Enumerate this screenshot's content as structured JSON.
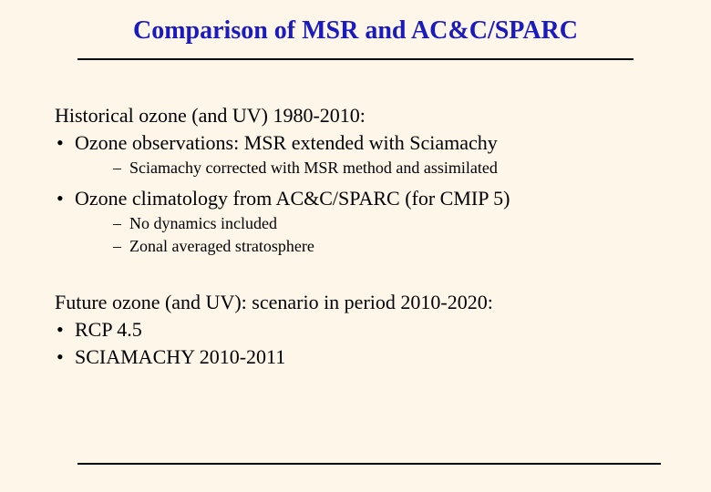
{
  "slide": {
    "title": "Comparison of MSR and AC&C/SPARC",
    "section1": {
      "intro": "Historical ozone (and UV) 1980-2010:",
      "bullets": [
        {
          "text": "Ozone observations: MSR extended with Sciamachy",
          "subs": [
            "Sciamachy corrected with MSR method and assimilated"
          ]
        },
        {
          "text": "Ozone climatology from AC&C/SPARC (for CMIP 5)",
          "subs": [
            "No dynamics included",
            "Zonal averaged stratosphere"
          ]
        }
      ]
    },
    "section2": {
      "intro": "Future ozone (and UV): scenario in period 2010-2020:",
      "bullets": [
        {
          "text": "RCP 4.5",
          "subs": []
        },
        {
          "text": "SCIAMACHY 2010-2011",
          "subs": []
        }
      ]
    },
    "colors": {
      "background": "#fdf6e9",
      "title": "#1a1abf",
      "text": "#000000",
      "rule": "#000000"
    },
    "fonts": {
      "family": "Times New Roman",
      "title_size": 28,
      "body_size": 22,
      "sub_size": 18
    }
  }
}
